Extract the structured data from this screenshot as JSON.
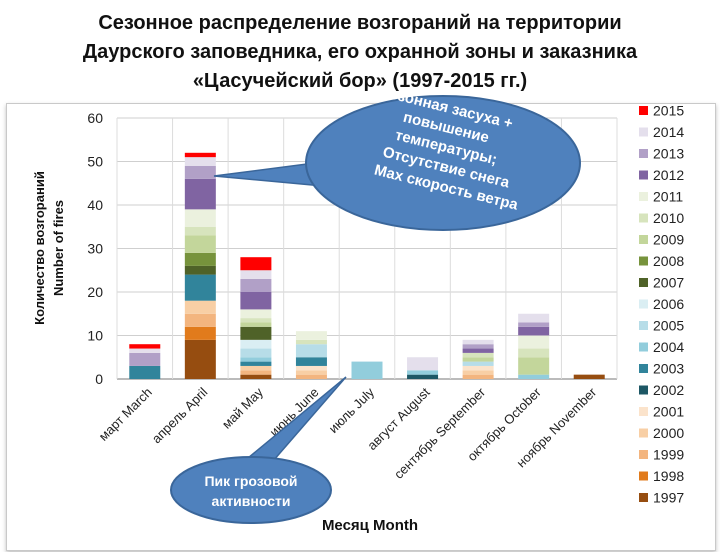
{
  "title": {
    "line1": "Сезонное распределение возгораний на территории",
    "line2": "Даурского заповедника, его охранной зоны и заказника",
    "line3": "«Цасучейский бор» (1997-2015 гг.)"
  },
  "annotations": {
    "drought": [
      "Сезонная засуха +",
      "повышение",
      "температуры;",
      "Отсутствие снега",
      "Max  скорость ветра"
    ],
    "thunder": [
      "Пик грозовой",
      "активности"
    ]
  },
  "chart_data": {
    "type": "bar",
    "stacked": true,
    "ylim": [
      0,
      60
    ],
    "yticks": [
      0,
      10,
      20,
      30,
      40,
      50,
      60
    ],
    "grid": true,
    "legend_position": "right",
    "ylabel_lines": [
      "Количество возгораний",
      "Number of fires"
    ],
    "xlabel": "Месяц Month",
    "categories": [
      "март March",
      "апрель April",
      "май  May",
      "июнь June",
      "июль July",
      "август August",
      "сентябрь September",
      "октябрь October",
      "ноябрь November"
    ],
    "series": [
      {
        "name": "1997",
        "color": "#964d10",
        "values": [
          0,
          9,
          1,
          0,
          0,
          0,
          0,
          0,
          1
        ]
      },
      {
        "name": "1998",
        "color": "#e17b1c",
        "values": [
          0,
          3,
          0,
          0,
          0,
          0,
          0,
          0,
          0
        ]
      },
      {
        "name": "1999",
        "color": "#f3b57f",
        "values": [
          0,
          3,
          1,
          1,
          0,
          0,
          1,
          0,
          0
        ]
      },
      {
        "name": "2000",
        "color": "#f8cfa5",
        "values": [
          0,
          3,
          1,
          1,
          0,
          0,
          1,
          0,
          0
        ]
      },
      {
        "name": "2001",
        "color": "#fbe3cb",
        "values": [
          0,
          0,
          0,
          1,
          0,
          0,
          1,
          0,
          0
        ]
      },
      {
        "name": "2002",
        "color": "#1d5765",
        "values": [
          0,
          0,
          0,
          0,
          0,
          1,
          0,
          0,
          0
        ]
      },
      {
        "name": "2003",
        "color": "#31849b",
        "values": [
          3,
          6,
          1,
          2,
          0,
          0,
          0,
          0,
          0
        ]
      },
      {
        "name": "2004",
        "color": "#92cddc",
        "values": [
          0,
          0,
          1,
          0,
          4,
          1,
          0,
          1,
          0
        ]
      },
      {
        "name": "2005",
        "color": "#b7dde8",
        "values": [
          0,
          0,
          2,
          3,
          0,
          0,
          1,
          0,
          0
        ]
      },
      {
        "name": "2006",
        "color": "#daeef3",
        "values": [
          0,
          0,
          2,
          0,
          0,
          0,
          0,
          0,
          0
        ]
      },
      {
        "name": "2007",
        "color": "#4f6228",
        "values": [
          0,
          2,
          3,
          0,
          0,
          0,
          0,
          0,
          0
        ]
      },
      {
        "name": "2008",
        "color": "#77933c",
        "values": [
          0,
          3,
          0,
          0,
          0,
          0,
          0,
          0,
          0
        ]
      },
      {
        "name": "2009",
        "color": "#c3d69b",
        "values": [
          0,
          4,
          1,
          0,
          0,
          0,
          1,
          4,
          0
        ]
      },
      {
        "name": "2010",
        "color": "#d7e4bd",
        "values": [
          0,
          2,
          1,
          1,
          0,
          0,
          1,
          2,
          0
        ]
      },
      {
        "name": "2011",
        "color": "#ebf1de",
        "values": [
          0,
          4,
          2,
          2,
          0,
          0,
          0,
          3,
          0
        ]
      },
      {
        "name": "2012",
        "color": "#8064a2",
        "values": [
          0,
          7,
          4,
          0,
          0,
          0,
          1,
          2,
          0
        ]
      },
      {
        "name": "2013",
        "color": "#b1a0c7",
        "values": [
          3,
          3,
          3,
          0,
          0,
          0,
          1,
          1,
          0
        ]
      },
      {
        "name": "2014",
        "color": "#e4dfec",
        "values": [
          1,
          2,
          2,
          0,
          0,
          3,
          1,
          2,
          0
        ]
      },
      {
        "name": "2015",
        "color": "#ff0000",
        "values": [
          1,
          1,
          3,
          0,
          0,
          0,
          0,
          0,
          0
        ]
      }
    ]
  }
}
